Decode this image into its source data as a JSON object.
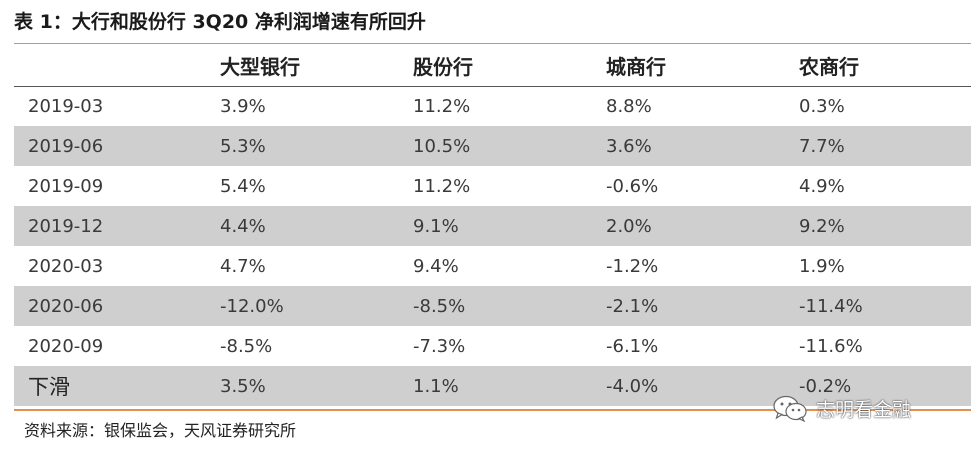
{
  "title": "表 1：大行和股份行 3Q20 净利润增速有所回升",
  "table": {
    "headers": [
      "",
      "大型银行",
      "股份行",
      "城商行",
      "农商行"
    ],
    "rows": [
      [
        "2019-03",
        "3.9%",
        "11.2%",
        "8.8%",
        "0.3%"
      ],
      [
        "2019-06",
        "5.3%",
        "10.5%",
        "3.6%",
        "7.7%"
      ],
      [
        "2019-09",
        "5.4%",
        "11.2%",
        "-0.6%",
        "4.9%"
      ],
      [
        "2019-12",
        "4.4%",
        "9.1%",
        "2.0%",
        "9.2%"
      ],
      [
        "2020-03",
        "4.7%",
        "9.4%",
        "-1.2%",
        "1.9%"
      ],
      [
        "2020-06",
        "-12.0%",
        "-8.5%",
        "-2.1%",
        "-11.4%"
      ],
      [
        "2020-09",
        "-8.5%",
        "-7.3%",
        "-6.1%",
        "-11.6%"
      ],
      [
        "下滑",
        "3.5%",
        "1.1%",
        "-4.0%",
        "-0.2%"
      ]
    ]
  },
  "source": "资料来源：银保监会，天风证券研究所",
  "watermark": {
    "text": "志明看金融",
    "icon": "wechat-icon"
  },
  "colors": {
    "accent_rule": "#e3904f",
    "shaded_row": "#cfcfcf"
  }
}
